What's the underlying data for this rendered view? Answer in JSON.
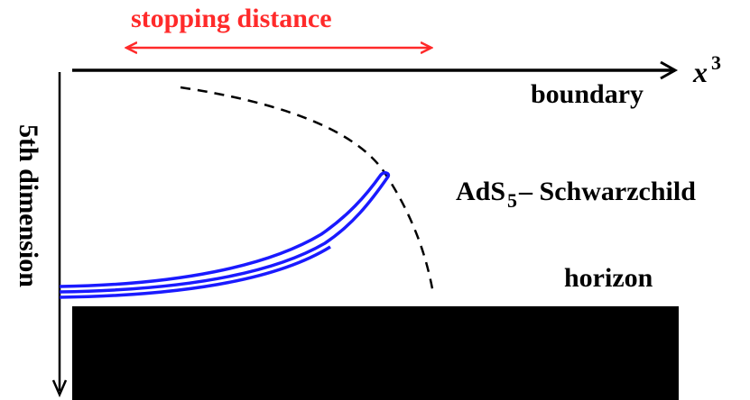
{
  "labels": {
    "stopping_distance": "stopping distance",
    "x_axis_symbol": "x",
    "x_axis_superscript": "3",
    "boundary": "boundary",
    "ads_prefix": "AdS",
    "ads_subscript": "5",
    "ads_suffix": "– Schwarzchild",
    "horizon": "horizon",
    "fifth_dimension": "5th dimension"
  },
  "colors": {
    "arrow_red": "#ff2a2a",
    "string_blue": "#1a1aff",
    "horizon_fill": "#000000",
    "axis": "#000000"
  }
}
